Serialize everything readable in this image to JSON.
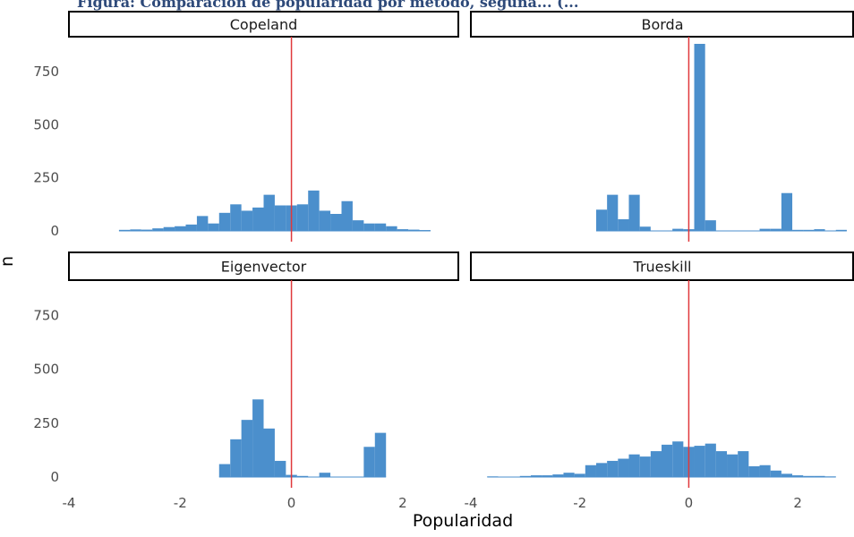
{
  "header": {
    "partial_title": "Figura: Comparación de popularidad por método, seguna... (..."
  },
  "chart_data": {
    "type": "bar",
    "xlabel": "Popularidad",
    "ylabel": "n",
    "xlim": [
      -4,
      3
    ],
    "ylim": [
      0,
      880
    ],
    "x_ticks": [
      -4,
      -2,
      0,
      2
    ],
    "y_ticks": [
      0,
      250,
      500,
      750
    ],
    "bin_width": 0.2,
    "vline_x": 0,
    "colors": {
      "bar": "#4b8fcc",
      "vline": "#e0383b",
      "strip_border": "#000000"
    },
    "panels": [
      {
        "name": "Copeland",
        "bins": [
          {
            "x": -3.0,
            "n": 5
          },
          {
            "x": -2.8,
            "n": 7
          },
          {
            "x": -2.6,
            "n": 6
          },
          {
            "x": -2.4,
            "n": 12
          },
          {
            "x": -2.2,
            "n": 18
          },
          {
            "x": -2.0,
            "n": 22
          },
          {
            "x": -1.8,
            "n": 30
          },
          {
            "x": -1.6,
            "n": 70
          },
          {
            "x": -1.4,
            "n": 35
          },
          {
            "x": -1.2,
            "n": 85
          },
          {
            "x": -1.0,
            "n": 125
          },
          {
            "x": -0.8,
            "n": 95
          },
          {
            "x": -0.6,
            "n": 110
          },
          {
            "x": -0.4,
            "n": 170
          },
          {
            "x": -0.2,
            "n": 120
          },
          {
            "x": 0.0,
            "n": 120
          },
          {
            "x": 0.2,
            "n": 125
          },
          {
            "x": 0.4,
            "n": 190
          },
          {
            "x": 0.6,
            "n": 95
          },
          {
            "x": 0.8,
            "n": 80
          },
          {
            "x": 1.0,
            "n": 140
          },
          {
            "x": 1.2,
            "n": 50
          },
          {
            "x": 1.4,
            "n": 35
          },
          {
            "x": 1.6,
            "n": 35
          },
          {
            "x": 1.8,
            "n": 22
          },
          {
            "x": 2.0,
            "n": 8
          },
          {
            "x": 2.2,
            "n": 6
          },
          {
            "x": 2.4,
            "n": 4
          }
        ]
      },
      {
        "name": "Borda",
        "bins": [
          {
            "x": -1.6,
            "n": 100
          },
          {
            "x": -1.4,
            "n": 170
          },
          {
            "x": -1.2,
            "n": 55
          },
          {
            "x": -1.0,
            "n": 170
          },
          {
            "x": -0.8,
            "n": 20
          },
          {
            "x": -0.2,
            "n": 10
          },
          {
            "x": 0.0,
            "n": 8
          },
          {
            "x": 0.2,
            "n": 880
          },
          {
            "x": 0.4,
            "n": 50
          },
          {
            "x": 1.4,
            "n": 10
          },
          {
            "x": 1.6,
            "n": 10
          },
          {
            "x": 1.8,
            "n": 178
          },
          {
            "x": 2.0,
            "n": 5
          },
          {
            "x": 2.2,
            "n": 5
          },
          {
            "x": 2.4,
            "n": 8
          },
          {
            "x": 2.8,
            "n": 5
          }
        ]
      },
      {
        "name": "Eigenvector",
        "bins": [
          {
            "x": -1.2,
            "n": 60
          },
          {
            "x": -1.0,
            "n": 175
          },
          {
            "x": -0.8,
            "n": 265
          },
          {
            "x": -0.6,
            "n": 360
          },
          {
            "x": -0.4,
            "n": 225
          },
          {
            "x": -0.2,
            "n": 75
          },
          {
            "x": 0.0,
            "n": 10
          },
          {
            "x": 0.2,
            "n": 5
          },
          {
            "x": 0.6,
            "n": 20
          },
          {
            "x": 1.4,
            "n": 140
          },
          {
            "x": 1.6,
            "n": 205
          }
        ]
      },
      {
        "name": "Trueskill",
        "bins": [
          {
            "x": -3.6,
            "n": 3
          },
          {
            "x": -3.4,
            "n": 2
          },
          {
            "x": -3.0,
            "n": 5
          },
          {
            "x": -2.8,
            "n": 8
          },
          {
            "x": -2.6,
            "n": 8
          },
          {
            "x": -2.4,
            "n": 12
          },
          {
            "x": -2.2,
            "n": 20
          },
          {
            "x": -2.0,
            "n": 15
          },
          {
            "x": -1.8,
            "n": 55
          },
          {
            "x": -1.6,
            "n": 65
          },
          {
            "x": -1.4,
            "n": 75
          },
          {
            "x": -1.2,
            "n": 85
          },
          {
            "x": -1.0,
            "n": 105
          },
          {
            "x": -0.8,
            "n": 95
          },
          {
            "x": -0.6,
            "n": 120
          },
          {
            "x": -0.4,
            "n": 150
          },
          {
            "x": -0.2,
            "n": 165
          },
          {
            "x": 0.0,
            "n": 140
          },
          {
            "x": 0.2,
            "n": 145
          },
          {
            "x": 0.4,
            "n": 155
          },
          {
            "x": 0.6,
            "n": 120
          },
          {
            "x": 0.8,
            "n": 105
          },
          {
            "x": 1.0,
            "n": 120
          },
          {
            "x": 1.2,
            "n": 50
          },
          {
            "x": 1.4,
            "n": 55
          },
          {
            "x": 1.6,
            "n": 30
          },
          {
            "x": 1.8,
            "n": 15
          },
          {
            "x": 2.0,
            "n": 8
          },
          {
            "x": 2.2,
            "n": 5
          },
          {
            "x": 2.4,
            "n": 5
          },
          {
            "x": 2.6,
            "n": 3
          }
        ]
      }
    ]
  }
}
